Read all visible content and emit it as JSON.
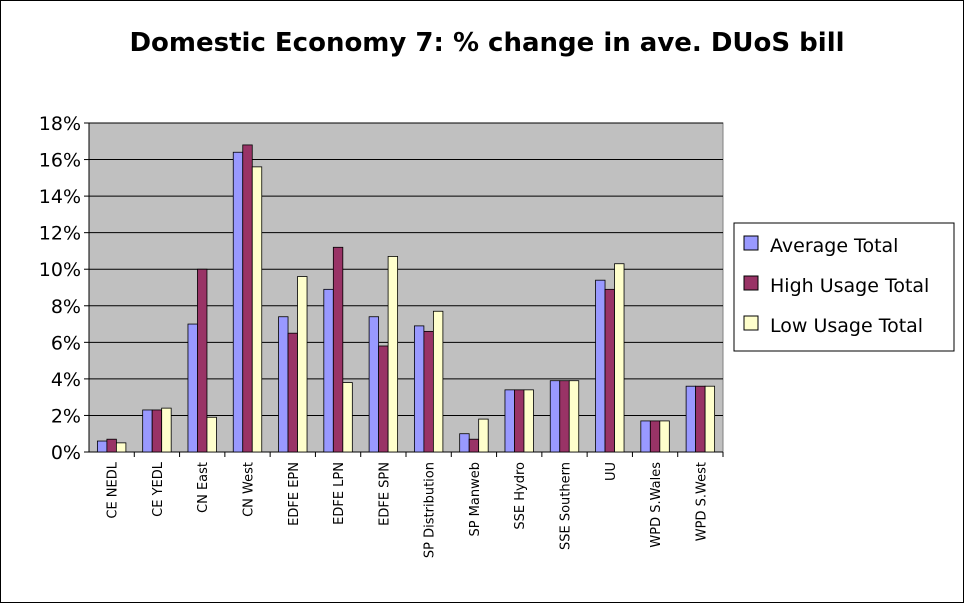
{
  "chart_data": {
    "type": "bar",
    "title": "Domestic Economy 7: % change in ave. DUoS bill",
    "xlabel": "",
    "ylabel": "",
    "ylim": [
      0,
      18
    ],
    "y_ticks": [
      "0%",
      "2%",
      "4%",
      "6%",
      "8%",
      "10%",
      "12%",
      "14%",
      "16%",
      "18%"
    ],
    "grid": true,
    "legend_position": "right",
    "plot_background": "#c0c0c0",
    "categories": [
      "CE NEDL",
      "CE YEDL",
      "CN East",
      "CN West",
      "EDFE EPN",
      "EDFE LPN",
      "EDFE SPN",
      "SP Distribution",
      "SP Manweb",
      "SSE Hydro",
      "SSE Southern",
      "UU",
      "WPD S.Wales",
      "WPD S.West"
    ],
    "series": [
      {
        "name": "Average Total",
        "color": "#9999ff",
        "values": [
          0.6,
          2.3,
          7.0,
          16.4,
          7.4,
          8.9,
          7.4,
          6.9,
          1.0,
          3.4,
          3.9,
          9.4,
          1.7,
          3.6
        ]
      },
      {
        "name": "High Usage Total",
        "color": "#993366",
        "values": [
          0.7,
          2.3,
          10.0,
          16.8,
          6.5,
          11.2,
          5.8,
          6.6,
          0.7,
          3.4,
          3.9,
          8.9,
          1.7,
          3.6
        ]
      },
      {
        "name": "Low Usage Total",
        "color": "#ffffcc",
        "values": [
          0.5,
          2.4,
          1.9,
          15.6,
          9.6,
          3.8,
          10.7,
          7.7,
          1.8,
          3.4,
          3.9,
          10.3,
          1.7,
          3.6
        ]
      }
    ]
  }
}
